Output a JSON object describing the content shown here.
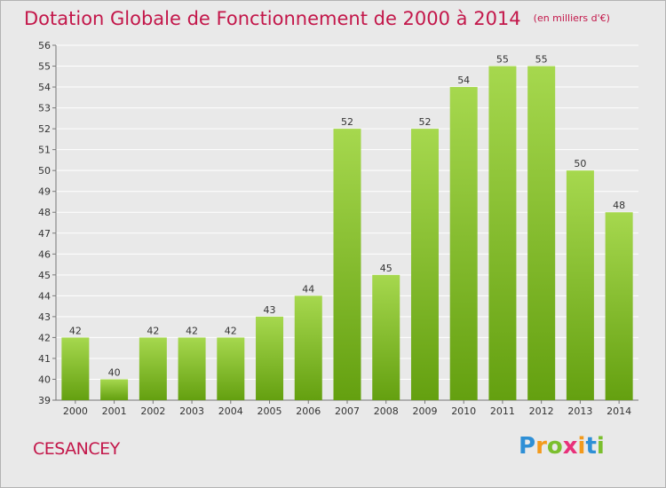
{
  "title": "Dotation Globale de Fonctionnement de 2000 à 2014",
  "unit": "(en milliers d'€)",
  "commune": "CESANCEY",
  "logo": {
    "letters": [
      "P",
      "r",
      "o",
      "x",
      "i",
      "t",
      "i"
    ]
  },
  "colors": {
    "title": "#c3174a",
    "bar_top": "#a6d84e",
    "bar_bottom": "#64a010",
    "background": "#e9e9e9"
  },
  "chart_data": {
    "type": "bar",
    "title": "Dotation Globale de Fonctionnement de 2000 à 2014",
    "xlabel": "",
    "ylabel": "",
    "categories": [
      "2000",
      "2001",
      "2002",
      "2003",
      "2004",
      "2005",
      "2006",
      "2007",
      "2008",
      "2009",
      "2010",
      "2011",
      "2012",
      "2013",
      "2014"
    ],
    "values": [
      42,
      40,
      42,
      42,
      42,
      43,
      44,
      52,
      45,
      52,
      54,
      55,
      55,
      50,
      48
    ],
    "ylim": [
      39,
      56
    ],
    "yticks": [
      "39",
      "40",
      "41",
      "42",
      "43",
      "44",
      "45",
      "46",
      "47",
      "48",
      "49",
      "50",
      "51",
      "52",
      "53",
      "54",
      "55",
      "56"
    ],
    "grid": true,
    "legend": "none"
  }
}
